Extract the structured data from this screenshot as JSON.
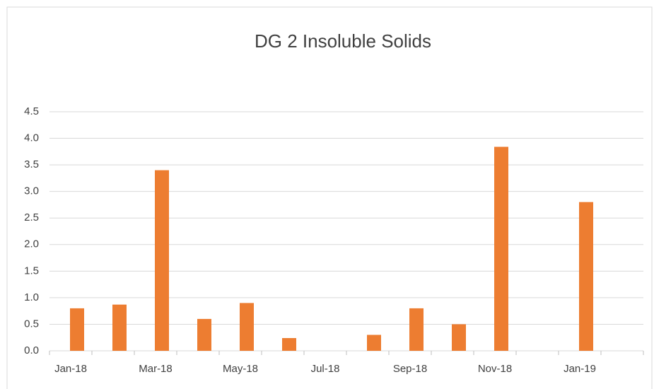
{
  "chart_data": {
    "type": "bar",
    "title": "DG 2 Insoluble Solids",
    "categories": [
      "Jan-18",
      null,
      "Mar-18",
      null,
      "May-18",
      null,
      "Jul-18",
      null,
      "Sep-18",
      null,
      "Nov-18",
      null,
      "Jan-19",
      null
    ],
    "values": [
      0.8,
      0.87,
      3.4,
      0.6,
      0.9,
      0.24,
      null,
      0.3,
      0.8,
      0.5,
      3.84,
      null,
      2.8,
      null
    ],
    "color": "#ed7d31",
    "ylim": [
      0,
      4.5
    ],
    "yticks": [
      {
        "value": 0,
        "label": "0.0"
      },
      {
        "value": 0.5,
        "label": "0.5"
      },
      {
        "value": 1,
        "label": "1.0"
      },
      {
        "value": 1.5,
        "label": "1.5"
      },
      {
        "value": 2,
        "label": "2.0"
      },
      {
        "value": 2.5,
        "label": "2.5"
      },
      {
        "value": 3,
        "label": "3.0"
      },
      {
        "value": 3.5,
        "label": "3.5"
      },
      {
        "value": 4,
        "label": "4.0"
      },
      {
        "value": 4.5,
        "label": "4.5"
      }
    ],
    "grid": true
  }
}
